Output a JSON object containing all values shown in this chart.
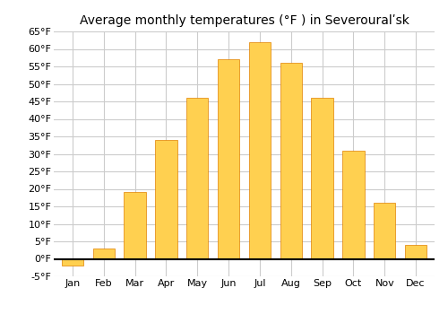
{
  "title": "Average monthly temperatures (°F ) in Severouralʹ​sk",
  "months": [
    "Jan",
    "Feb",
    "Mar",
    "Apr",
    "May",
    "Jun",
    "Jul",
    "Aug",
    "Sep",
    "Oct",
    "Nov",
    "Dec"
  ],
  "values": [
    -2,
    3,
    19,
    34,
    46,
    57,
    62,
    56,
    46,
    31,
    16,
    4
  ],
  "bar_color": "#FFA500",
  "bar_color_light": "#FFD050",
  "bar_edge_color": "#E08000",
  "ylim": [
    -5,
    65
  ],
  "yticks": [
    -5,
    0,
    5,
    10,
    15,
    20,
    25,
    30,
    35,
    40,
    45,
    50,
    55,
    60,
    65
  ],
  "background_color": "#ffffff",
  "grid_color": "#cccccc",
  "title_fontsize": 10,
  "tick_fontsize": 8,
  "font_family": "DejaVu Sans"
}
